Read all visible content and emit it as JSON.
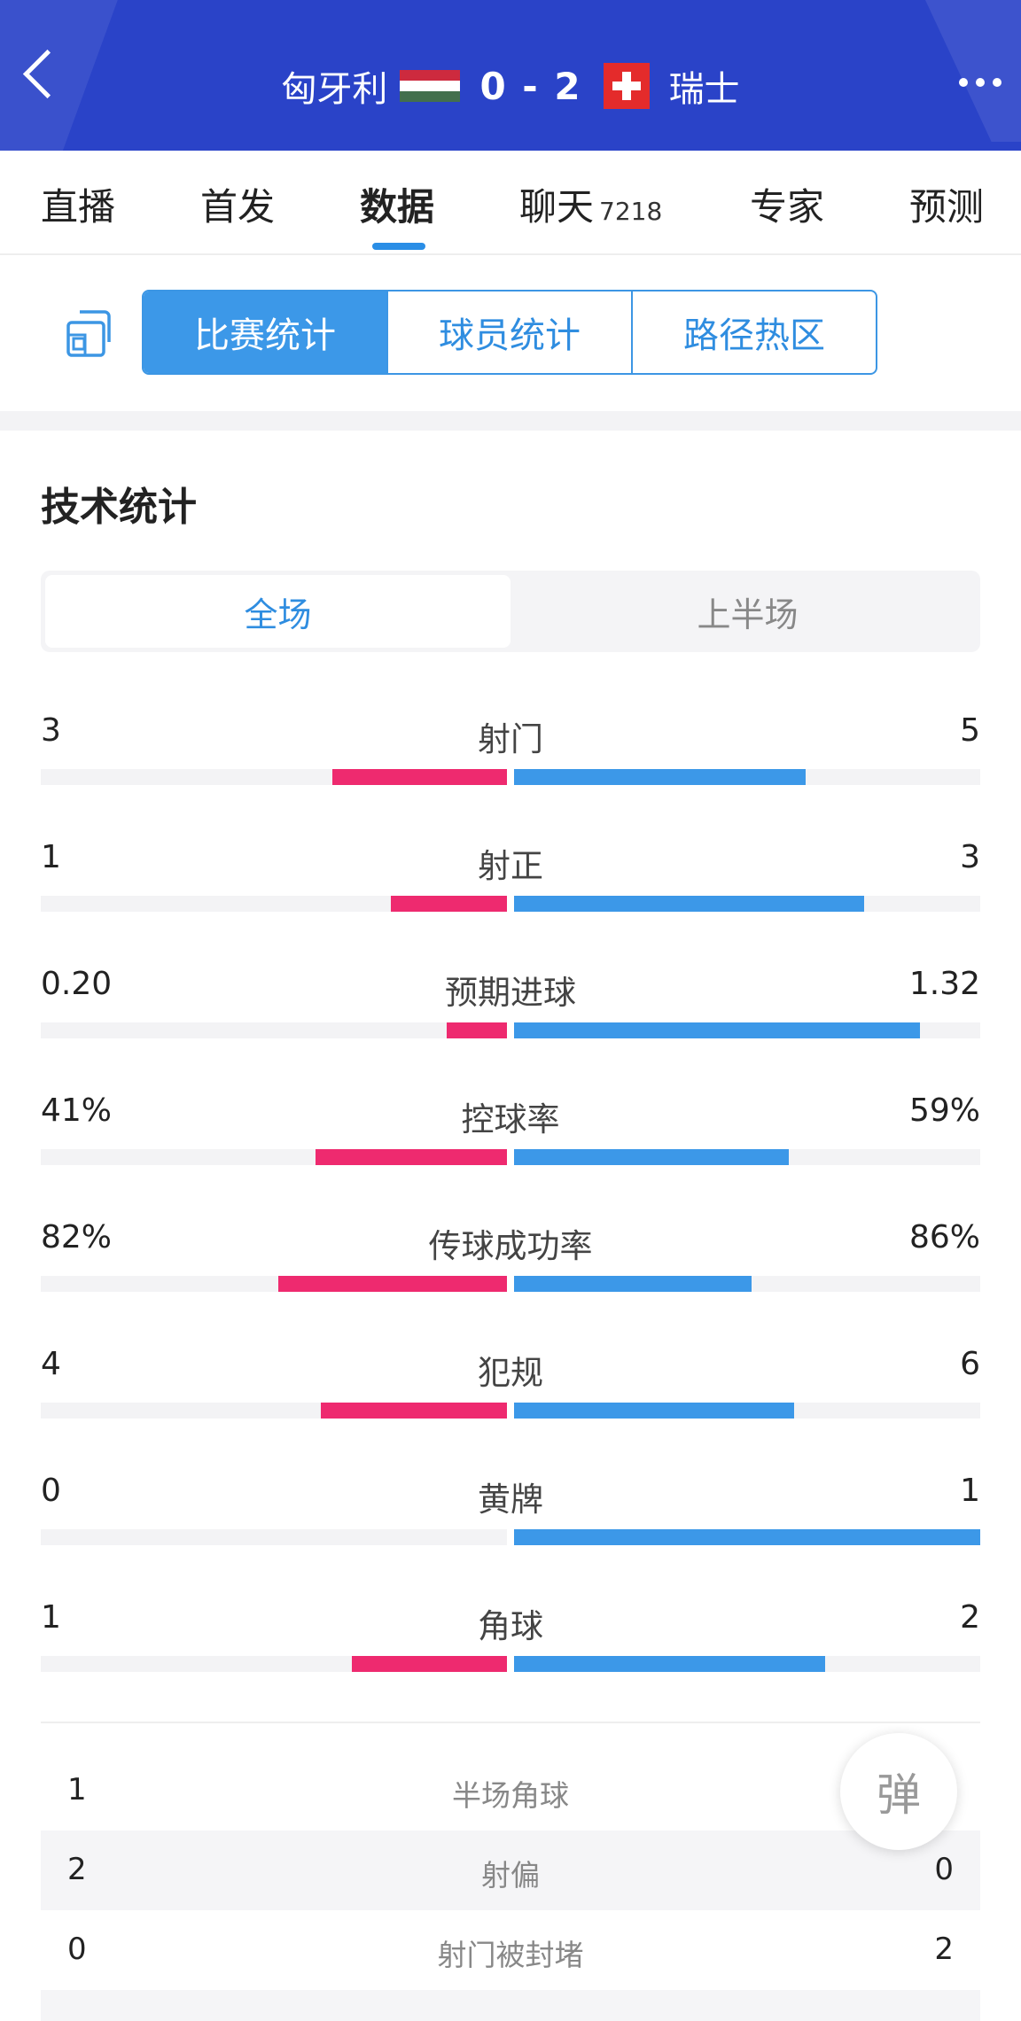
{
  "header": {
    "home_team": "匈牙利",
    "away_team": "瑞士",
    "score": "0 - 2",
    "colors": {
      "header_bg": "#2a43c8",
      "hu_red": "#cd2a3e",
      "hu_green": "#436f4d",
      "ch_red": "#e42b2b"
    },
    "icons": [
      "back-chevron-icon",
      "hungary-flag-icon",
      "switzerland-flag-icon",
      "more-dots-icon"
    ]
  },
  "tabs": [
    {
      "label": "直播"
    },
    {
      "label": "首发"
    },
    {
      "label": "数据",
      "active": true
    },
    {
      "label": "聊天",
      "badge": "7218"
    },
    {
      "label": "专家"
    },
    {
      "label": "预测"
    }
  ],
  "segment": {
    "options": [
      "比赛统计",
      "球员统计",
      "路径热区"
    ],
    "active_index": 0
  },
  "section_title": "技术统计",
  "period": {
    "options": [
      "全场",
      "上半场"
    ],
    "active_index": 0
  },
  "stats": [
    {
      "name": "射门",
      "left": "3",
      "right": "5",
      "left_frac": 0.375,
      "right_frac": 0.625
    },
    {
      "name": "射正",
      "left": "1",
      "right": "3",
      "left_frac": 0.25,
      "right_frac": 0.75
    },
    {
      "name": "预期进球",
      "left": "0.20",
      "right": "1.32",
      "left_frac": 0.13,
      "right_frac": 0.87
    },
    {
      "name": "控球率",
      "left": "41%",
      "right": "59%",
      "left_frac": 0.41,
      "right_frac": 0.59
    },
    {
      "name": "传球成功率",
      "left": "82%",
      "right": "86%",
      "left_frac": 0.49,
      "right_frac": 0.51
    },
    {
      "name": "犯规",
      "left": "4",
      "right": "6",
      "left_frac": 0.4,
      "right_frac": 0.6
    },
    {
      "name": "黄牌",
      "left": "0",
      "right": "1",
      "left_frac": 0.0,
      "right_frac": 1.0
    },
    {
      "name": "角球",
      "left": "1",
      "right": "2",
      "left_frac": 0.333,
      "right_frac": 0.667
    }
  ],
  "table": [
    {
      "name": "半场角球",
      "left": "1",
      "right": ""
    },
    {
      "name": "射偏",
      "left": "2",
      "right": "0"
    },
    {
      "name": "射门被封堵",
      "left": "0",
      "right": "2"
    }
  ],
  "danmu_label": "弹"
}
